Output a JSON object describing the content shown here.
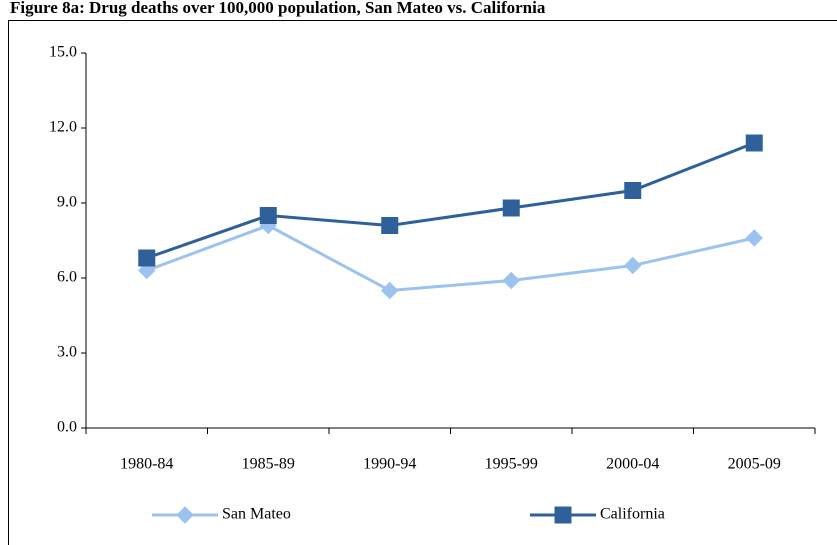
{
  "chart_data": {
    "type": "line",
    "title": "Figure 8a: Drug deaths over 100,000 population, San Mateo vs. California",
    "categories": [
      "1980-84",
      "1985-89",
      "1990-94",
      "1995-99",
      "2000-04",
      "2005-09"
    ],
    "series": [
      {
        "name": "San Mateo",
        "color": "#9cc3ef",
        "marker": "diamond",
        "values": [
          6.3,
          8.1,
          5.5,
          5.9,
          6.5,
          7.6
        ]
      },
      {
        "name": "California",
        "color": "#2f609a",
        "marker": "square",
        "values": [
          6.8,
          8.5,
          8.1,
          8.8,
          9.5,
          11.4
        ]
      }
    ],
    "ylim": [
      0,
      15
    ],
    "yticks": [
      {
        "value": 0,
        "label": "0.0"
      },
      {
        "value": 3,
        "label": "3.0"
      },
      {
        "value": 6,
        "label": "6.0"
      },
      {
        "value": 9,
        "label": "9.0"
      },
      {
        "value": 12,
        "label": "12.0"
      },
      {
        "value": 15,
        "label": "15.0"
      }
    ],
    "grid": false,
    "legend": "bottom"
  }
}
